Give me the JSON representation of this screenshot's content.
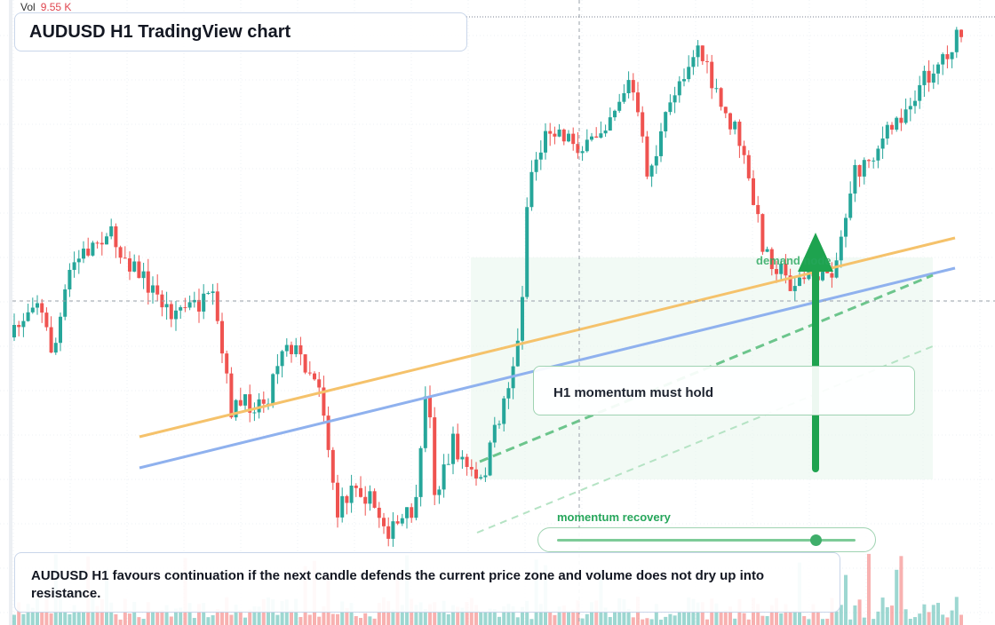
{
  "header": {
    "vol_label": "Vol",
    "vol_value": "9.55 K",
    "title": "AUDUSD H1 TradingView chart"
  },
  "annotations": {
    "zone_label": "demand node",
    "note": "H1 momentum must hold",
    "slider_label": "momentum recovery"
  },
  "footer": {
    "text": "AUDUSD H1 favours continuation if the next candle defends the current price zone and volume does not dry up into resistance."
  }
}
